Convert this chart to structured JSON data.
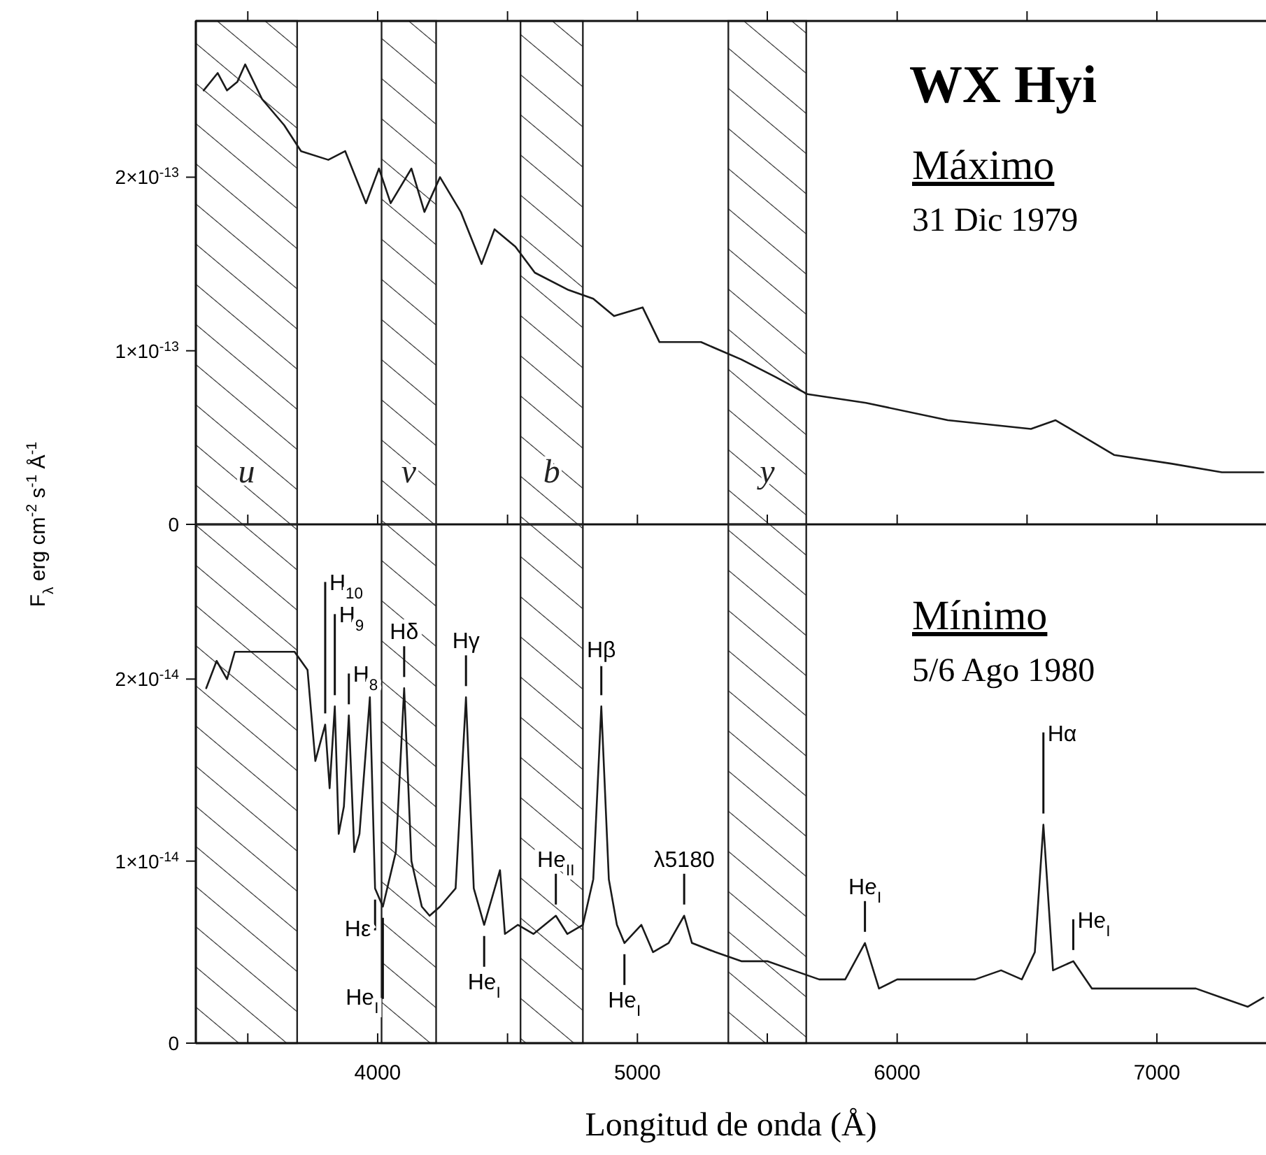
{
  "chart_data": [
    {
      "type": "line",
      "title": "WX Hyi",
      "ylabel": "F$_{λ}$ erg cm$^{-2}$ s$^{-1}$ Å$^{-1}$",
      "annotations": [
        "Máximo",
        "31 Dic 1979"
      ],
      "xlim": [
        3300,
        7420
      ],
      "ylim": [
        0,
        2.9e-13
      ],
      "xticks": [
        {
          "value": 3500,
          "label": null
        },
        {
          "value": 4000,
          "label": null
        },
        {
          "value": 4500,
          "label": null
        },
        {
          "value": 5000,
          "label": null
        },
        {
          "value": 5500,
          "label": null
        },
        {
          "value": 6000,
          "label": null
        },
        {
          "value": 6500,
          "label": null
        },
        {
          "value": 7000,
          "label": null
        }
      ],
      "yticks": [
        {
          "value": 0,
          "label": "0"
        },
        {
          "value": 1e-13,
          "label": "1×10$^{-13}$"
        },
        {
          "value": 2e-13,
          "label": "2×10$^{-13}$"
        }
      ],
      "tick_labels": "y",
      "bands": [
        {
          "axis": "x",
          "from": 3300,
          "to": 3690,
          "label": "u",
          "color": "#222222"
        },
        {
          "axis": "x",
          "from": 4015,
          "to": 4225,
          "label": "v",
          "color": "#222222"
        },
        {
          "axis": "x",
          "from": 4550,
          "to": 4790,
          "label": "b",
          "color": "#222222"
        },
        {
          "axis": "x",
          "from": 5350,
          "to": 5650,
          "label": "y",
          "color": "#222222"
        }
      ],
      "series": [
        {
          "color": "#1a1a1a",
          "x": [
            3330,
            3384,
            3420,
            3460,
            3490,
            3555,
            3640,
            3705,
            3810,
            3875,
            3955,
            4005,
            4050,
            4130,
            4180,
            4240,
            4320,
            4400,
            4450,
            4530,
            4605,
            4735,
            4830,
            4910,
            5020,
            5085,
            5245,
            5400,
            5530,
            5655,
            5880,
            6195,
            6515,
            6610,
            6835,
            7055,
            7250,
            7410
          ],
          "values": [
            2.5e-13,
            2.6e-13,
            2.5e-13,
            2.55e-13,
            2.65e-13,
            2.45e-13,
            2.3e-13,
            2.15e-13,
            2.1e-13,
            2.15e-13,
            1.85e-13,
            2.05e-13,
            1.85e-13,
            2.05e-13,
            1.8e-13,
            2e-13,
            1.8e-13,
            1.5e-13,
            1.7e-13,
            1.6e-13,
            1.45e-13,
            1.35e-13,
            1.3e-13,
            1.2e-13,
            1.25e-13,
            1.05e-13,
            1.05e-13,
            9.5e-14,
            8.5e-14,
            7.5e-14,
            7e-14,
            6e-14,
            5.5e-14,
            6e-14,
            4e-14,
            3.5e-14,
            3e-14,
            3e-14
          ]
        }
      ]
    },
    {
      "type": "line",
      "xlabel": "Longitud de onda (Å)",
      "annotations": [
        "Mínimo",
        "5/6 Ago 1980",
        {
          "text": "H$_{10}$",
          "x": 3798,
          "y": 1.75e-14
        },
        {
          "text": "H$_{9}$",
          "x": 3835,
          "y": 1.85e-14
        },
        {
          "text": "H$_{8}$",
          "x": 3889,
          "y": 1.8e-14
        },
        {
          "text": "Hδ",
          "x": 4102,
          "y": 1.95e-14
        },
        {
          "text": "Hγ",
          "x": 4340,
          "y": 1.9e-14
        },
        {
          "text": "Hβ",
          "x": 4861,
          "y": 1.85e-14
        },
        {
          "text": "Hε",
          "x": 3990,
          "y": 8.5e-15
        },
        {
          "text": "He$_{I}$",
          "x": 4020,
          "y": 7.5e-15
        },
        {
          "text": "He$_{I}$",
          "x": 4410,
          "y": 6.5e-15
        },
        {
          "text": "He$_{II}$",
          "x": 4686,
          "y": 7e-15
        },
        {
          "text": "He$_{I}$",
          "x": 4950,
          "y": 5.5e-15
        },
        {
          "text": "λ5180",
          "x": 5180,
          "y": 7e-15
        },
        {
          "text": "He$_{I}$",
          "x": 5876,
          "y": 5.5e-15
        },
        {
          "text": "Hα",
          "x": 6563,
          "y": 1.2e-14
        },
        {
          "text": "He$_{I}$",
          "x": 6678,
          "y": 4.5e-15
        }
      ],
      "xlim": [
        3300,
        7420
      ],
      "ylim": [
        0,
        2.85e-14
      ],
      "xticks": [
        {
          "value": 3500,
          "label": null
        },
        4000,
        {
          "value": 4500,
          "label": null
        },
        5000,
        {
          "value": 5500,
          "label": null
        },
        6000,
        {
          "value": 6500,
          "label": null
        },
        7000
      ],
      "yticks": [
        {
          "value": 0,
          "label": "0"
        },
        {
          "value": 1e-14,
          "label": "1×10$^{-14}$"
        },
        {
          "value": 2e-14,
          "label": "2×10$^{-14}$"
        }
      ],
      "bands": [
        {
          "axis": "x",
          "from": 3300,
          "to": 3690,
          "color": "#222222"
        },
        {
          "axis": "x",
          "from": 4015,
          "to": 4225,
          "color": "#222222"
        },
        {
          "axis": "x",
          "from": 4550,
          "to": 4790,
          "color": "#222222"
        },
        {
          "axis": "x",
          "from": 5350,
          "to": 5650,
          "color": "#222222"
        }
      ],
      "series": [
        {
          "color": "#1a1a1a",
          "x": [
            3340,
            3380,
            3420,
            3450,
            3510,
            3570,
            3620,
            3680,
            3730,
            3760,
            3798,
            3815,
            3835,
            3850,
            3870,
            3889,
            3910,
            3930,
            3970,
            3990,
            4020,
            4070,
            4102,
            4130,
            4170,
            4200,
            4240,
            4300,
            4340,
            4370,
            4410,
            4471,
            4490,
            4540,
            4600,
            4686,
            4730,
            4790,
            4830,
            4861,
            4890,
            4921,
            4950,
            5015,
            5060,
            5120,
            5180,
            5210,
            5300,
            5400,
            5500,
            5600,
            5700,
            5800,
            5876,
            5930,
            6000,
            6100,
            6200,
            6300,
            6400,
            6480,
            6530,
            6563,
            6600,
            6678,
            6750,
            6850,
            6950,
            7050,
            7150,
            7250,
            7350,
            7410
          ],
          "values": [
            1.95e-14,
            2.1e-14,
            2e-14,
            2.15e-14,
            2.15e-14,
            2.15e-14,
            2.15e-14,
            2.15e-14,
            2.05e-14,
            1.55e-14,
            1.75e-14,
            1.4e-14,
            1.85e-14,
            1.15e-14,
            1.3e-14,
            1.8e-14,
            1.05e-14,
            1.15e-14,
            1.9e-14,
            8.5e-15,
            7.5e-15,
            1.05e-14,
            1.95e-14,
            1e-14,
            7.5e-15,
            7e-15,
            7.5e-15,
            8.5e-15,
            1.9e-14,
            8.5e-15,
            6.5e-15,
            9.5e-15,
            6e-15,
            6.5e-15,
            6e-15,
            7e-15,
            6e-15,
            6.5e-15,
            9e-15,
            1.85e-14,
            9e-15,
            6.5e-15,
            5.5e-15,
            6.5e-15,
            5e-15,
            5.5e-15,
            7e-15,
            5.5e-15,
            5e-15,
            4.5e-15,
            4.5e-15,
            4e-15,
            3.5e-15,
            3.5e-15,
            5.5e-15,
            3e-15,
            3.5e-15,
            3.5e-15,
            3.5e-15,
            3.5e-15,
            4e-15,
            3.5e-15,
            5e-15,
            1.2e-14,
            4e-15,
            4.5e-15,
            3e-15,
            3e-15,
            3e-15,
            3e-15,
            3e-15,
            2.5e-15,
            2e-15,
            2.5e-15
          ]
        }
      ]
    }
  ]
}
